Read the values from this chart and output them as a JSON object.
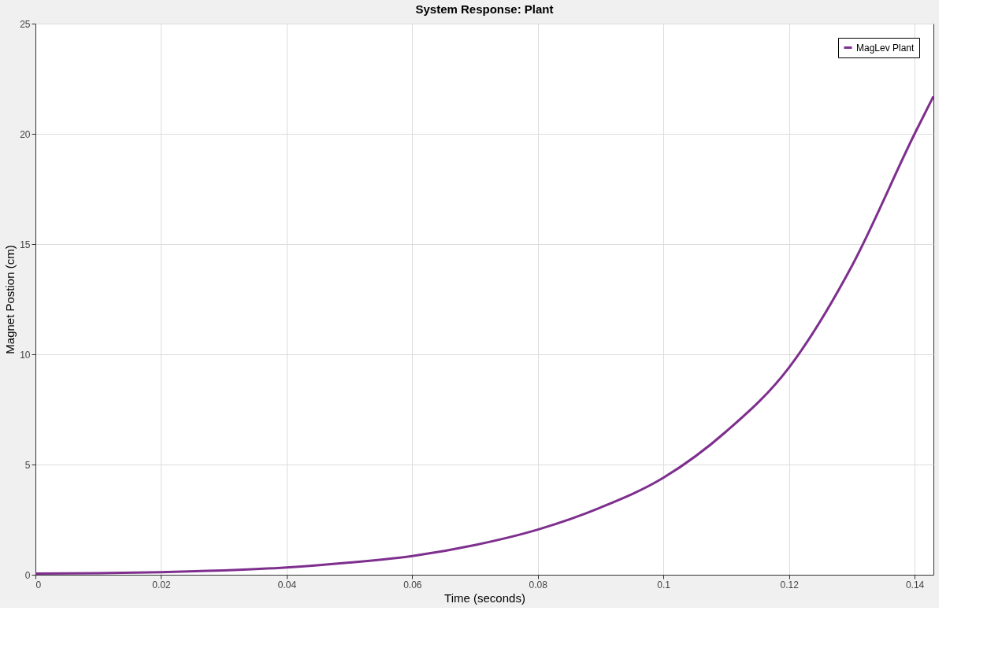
{
  "chart_data": {
    "type": "line",
    "title": "System Response: Plant",
    "xlabel": "Time (seconds)",
    "ylabel": "Magnet Postion (cm)",
    "x": [
      0,
      0.01,
      0.02,
      0.03,
      0.04,
      0.05,
      0.06,
      0.07,
      0.08,
      0.09,
      0.1,
      0.11,
      0.12,
      0.13,
      0.14,
      0.143
    ],
    "series": [
      {
        "name": "MagLev Plant",
        "color": "#7e2f8e",
        "values": [
          0.05,
          0.07,
          0.12,
          0.2,
          0.33,
          0.55,
          0.85,
          1.35,
          2.05,
          3.05,
          4.4,
          6.5,
          9.4,
          14,
          20,
          21.7
        ]
      }
    ],
    "xlim": [
      0,
      0.143
    ],
    "xticks": [
      0,
      0.02,
      0.04,
      0.06,
      0.08,
      0.1,
      0.12,
      0.14
    ],
    "ylim": [
      0,
      25
    ],
    "yticks": [
      0,
      5,
      10,
      15,
      20,
      25
    ],
    "grid": true,
    "legend": "top right",
    "marker": "none",
    "line_style": "solid"
  }
}
